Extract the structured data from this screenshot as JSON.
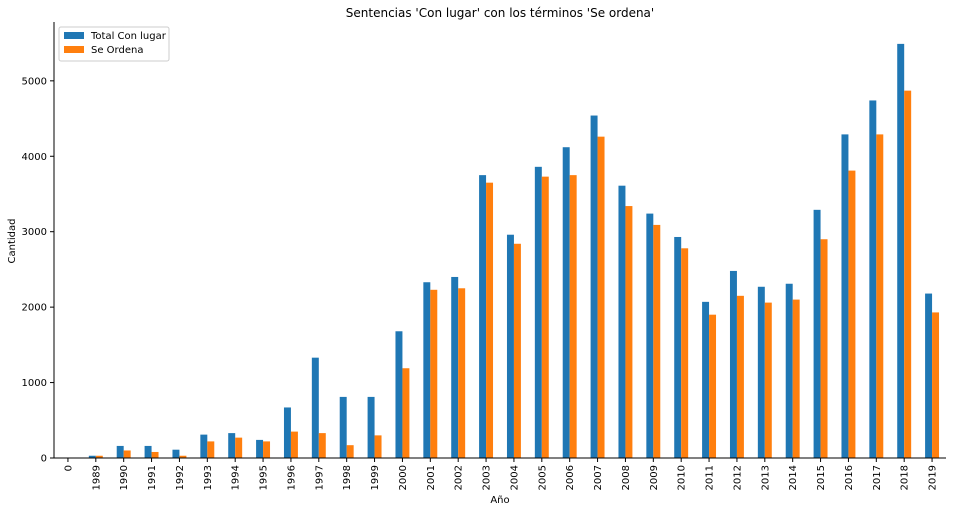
{
  "chart_data": {
    "type": "bar",
    "title": "Sentencias 'Con lugar' con los términos 'Se ordena'",
    "xlabel": "Año",
    "ylabel": "Cantidad",
    "ylim": [
      0,
      5780
    ],
    "yticks": [
      0,
      1000,
      2000,
      3000,
      4000,
      5000
    ],
    "grid": false,
    "legend_position": "top-left",
    "categories": [
      "0",
      "1989",
      "1990",
      "1991",
      "1992",
      "1993",
      "1994",
      "1995",
      "1996",
      "1997",
      "1998",
      "1999",
      "2000",
      "2001",
      "2002",
      "2003",
      "2004",
      "2005",
      "2006",
      "2007",
      "2008",
      "2009",
      "2010",
      "2011",
      "2012",
      "2013",
      "2014",
      "2015",
      "2016",
      "2017",
      "2018",
      "2019"
    ],
    "series": [
      {
        "name": "Total Con lugar",
        "color": "#1f77b4",
        "values": [
          0,
          30,
          160,
          160,
          110,
          310,
          330,
          240,
          670,
          1330,
          810,
          810,
          1680,
          2330,
          2400,
          3750,
          2960,
          3860,
          4120,
          4540,
          3610,
          3240,
          2930,
          2070,
          2480,
          2270,
          2310,
          3290,
          4290,
          4740,
          5490,
          2180
        ]
      },
      {
        "name": "Se Ordena",
        "color": "#ff7f0e",
        "values": [
          0,
          30,
          100,
          80,
          30,
          220,
          270,
          220,
          350,
          330,
          170,
          300,
          1190,
          2230,
          2250,
          3650,
          2840,
          3730,
          3750,
          4260,
          3340,
          3090,
          2780,
          1900,
          2150,
          2060,
          2100,
          2900,
          3810,
          4290,
          4870,
          1930
        ]
      }
    ]
  }
}
